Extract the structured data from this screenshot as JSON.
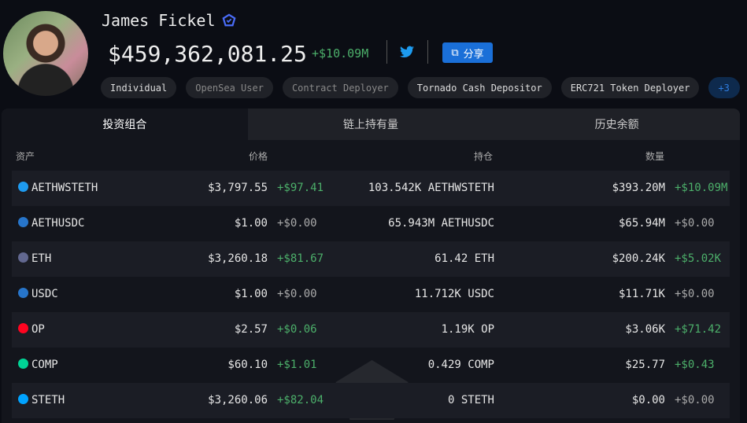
{
  "profile": {
    "name": "James Fickel",
    "balance": "$459,362,081.25",
    "change": "+$10.09M",
    "share_label": "分享",
    "tags": [
      "Individual",
      "OpenSea User",
      "Contract Deployer",
      "Tornado Cash Depositor",
      "ERC721 Token Deployer",
      "+3"
    ]
  },
  "tabs": [
    "投资组合",
    "链上持有量",
    "历史余额"
  ],
  "columns": {
    "asset": "资产",
    "price": "价格",
    "holding": "持仓",
    "value": "数量"
  },
  "rows": [
    {
      "asset": "AETHWSTETH",
      "icon": "wsteth-icon",
      "color": "#1e9bf0",
      "price": "$3,797.55",
      "price_change": "+$97.41",
      "holding": "103.542K AETHWSTETH",
      "value": "$393.20M",
      "value_change": "+$10.09M"
    },
    {
      "asset": "AETHUSDC",
      "icon": "usdc-icon",
      "color": "#2775ca",
      "price": "$1.00",
      "price_change": "+$0.00",
      "holding": "65.943M AETHUSDC",
      "value": "$65.94M",
      "value_change": "+$0.00"
    },
    {
      "asset": "ETH",
      "icon": "eth-icon",
      "color": "#626890",
      "price": "$3,260.18",
      "price_change": "+$81.67",
      "holding": "61.42 ETH",
      "value": "$200.24K",
      "value_change": "+$5.02K"
    },
    {
      "asset": "USDC",
      "icon": "usdc-icon",
      "color": "#2775ca",
      "price": "$1.00",
      "price_change": "+$0.00",
      "holding": "11.712K USDC",
      "value": "$11.71K",
      "value_change": "+$0.00"
    },
    {
      "asset": "OP",
      "icon": "op-icon",
      "color": "#ff0420",
      "price": "$2.57",
      "price_change": "+$0.06",
      "holding": "1.19K OP",
      "value": "$3.06K",
      "value_change": "+$71.42"
    },
    {
      "asset": "COMP",
      "icon": "comp-icon",
      "color": "#00d395",
      "price": "$60.10",
      "price_change": "+$1.01",
      "holding": "0.429 COMP",
      "value": "$25.77",
      "value_change": "+$0.43"
    },
    {
      "asset": "STETH",
      "icon": "steth-icon",
      "color": "#00a3ff",
      "price": "$3,260.06",
      "price_change": "+$82.04",
      "holding": "0 STETH",
      "value": "$0.00",
      "value_change": "+$0.00"
    }
  ]
}
